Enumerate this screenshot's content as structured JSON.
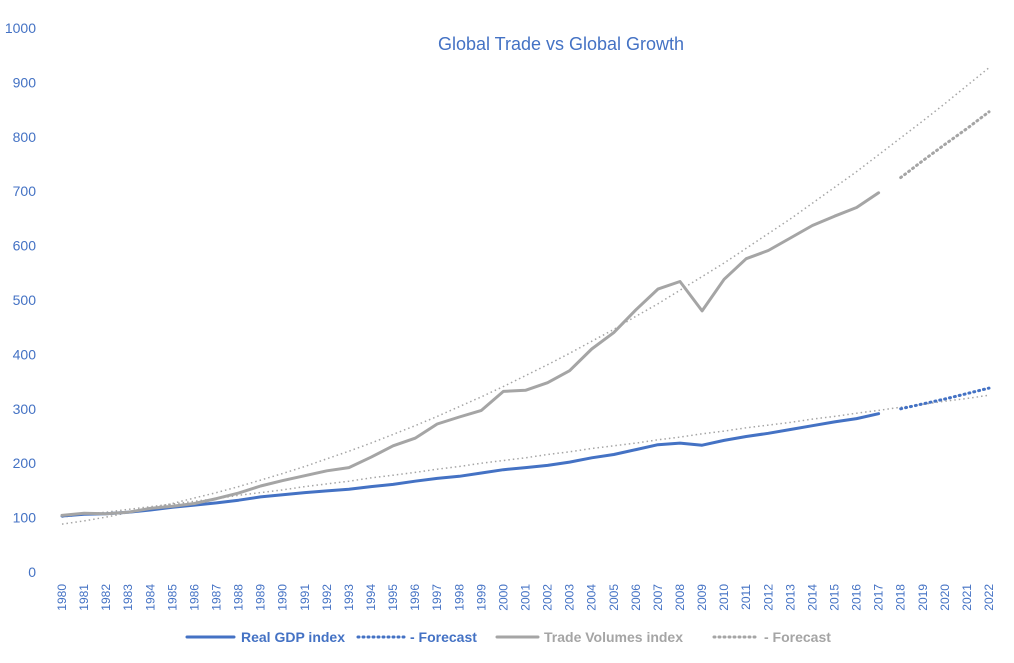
{
  "chart_data": {
    "type": "line",
    "title": "Global Trade vs Global Growth",
    "xlabel": "",
    "ylabel": "",
    "ylim": [
      0,
      1000
    ],
    "yticks": [
      "0",
      "100",
      "200",
      "300",
      "400",
      "500",
      "600",
      "700",
      "800",
      "900",
      "1000"
    ],
    "x": [
      "1980",
      "1981",
      "1982",
      "1983",
      "1984",
      "1985",
      "1986",
      "1987",
      "1988",
      "1989",
      "1990",
      "1991",
      "1992",
      "1993",
      "1994",
      "1995",
      "1996",
      "1997",
      "1998",
      "1999",
      "2000",
      "2001",
      "2002",
      "2003",
      "2004",
      "2005",
      "2006",
      "2007",
      "2008",
      "2009",
      "2010",
      "2011",
      "2012",
      "2013",
      "2014",
      "2015",
      "2016",
      "2017",
      "2018",
      "2019",
      "2020",
      "2021",
      "2022"
    ],
    "grid": false,
    "legend_position": "bottom",
    "series": [
      {
        "name": "Real GDP index",
        "style": "solid",
        "color": "#4472c4",
        "values": [
          103,
          106,
          107,
          110,
          114,
          119,
          123,
          127,
          132,
          138,
          142,
          146,
          149,
          152,
          157,
          161,
          167,
          172,
          176,
          182,
          188,
          192,
          196,
          202,
          210,
          216,
          225,
          234,
          237,
          233,
          242,
          249,
          255,
          262,
          269,
          276,
          282,
          291,
          null,
          null,
          null,
          null,
          null
        ]
      },
      {
        "name": "- Forecast",
        "style": "dotted",
        "color": "#4472c4",
        "values": [
          null,
          null,
          null,
          null,
          null,
          null,
          null,
          null,
          null,
          null,
          null,
          null,
          null,
          null,
          null,
          null,
          null,
          null,
          null,
          null,
          null,
          null,
          null,
          null,
          null,
          null,
          null,
          null,
          null,
          null,
          null,
          null,
          null,
          null,
          null,
          null,
          null,
          null,
          300,
          309,
          318,
          328,
          338
        ]
      },
      {
        "name": "Trade Volumes index",
        "style": "solid",
        "color": "#a5a5a5",
        "values": [
          104,
          108,
          107,
          110,
          117,
          121,
          126,
          135,
          145,
          158,
          168,
          177,
          186,
          192,
          211,
          232,
          246,
          272,
          285,
          297,
          332,
          334,
          348,
          370,
          410,
          440,
          482,
          520,
          534,
          480,
          538,
          576,
          591,
          614,
          637,
          654,
          670,
          697,
          null,
          null,
          null,
          null,
          null
        ]
      },
      {
        "name": "- Forecast",
        "style": "dotted",
        "color": "#a5a5a5",
        "values": [
          null,
          null,
          null,
          null,
          null,
          null,
          null,
          null,
          null,
          null,
          null,
          null,
          null,
          null,
          null,
          null,
          null,
          null,
          null,
          null,
          null,
          null,
          null,
          null,
          null,
          null,
          null,
          null,
          null,
          null,
          null,
          null,
          null,
          null,
          null,
          null,
          null,
          null,
          725,
          756,
          786,
          815,
          846
        ]
      }
    ],
    "trendlines": [
      {
        "color": "#a5a5a5",
        "values": [
          88,
          94,
          101,
          109,
          117,
          126,
          136,
          146,
          157,
          169,
          181,
          194,
          208,
          222,
          237,
          253,
          269,
          286,
          304,
          322,
          341,
          361,
          381,
          402,
          424,
          446,
          470,
          493,
          518,
          543,
          568,
          595,
          622,
          649,
          678,
          707,
          736,
          767,
          798,
          829,
          861,
          894,
          927
        ]
      },
      {
        "color": "#a5a5a5",
        "values": [
          101,
          106,
          110,
          115,
          120,
          125,
          130,
          135,
          141,
          146,
          151,
          157,
          162,
          167,
          173,
          178,
          183,
          189,
          194,
          200,
          205,
          210,
          216,
          221,
          227,
          232,
          237,
          243,
          248,
          254,
          259,
          265,
          270,
          275,
          281,
          286,
          292,
          297,
          303,
          308,
          314,
          319,
          325
        ]
      }
    ]
  }
}
